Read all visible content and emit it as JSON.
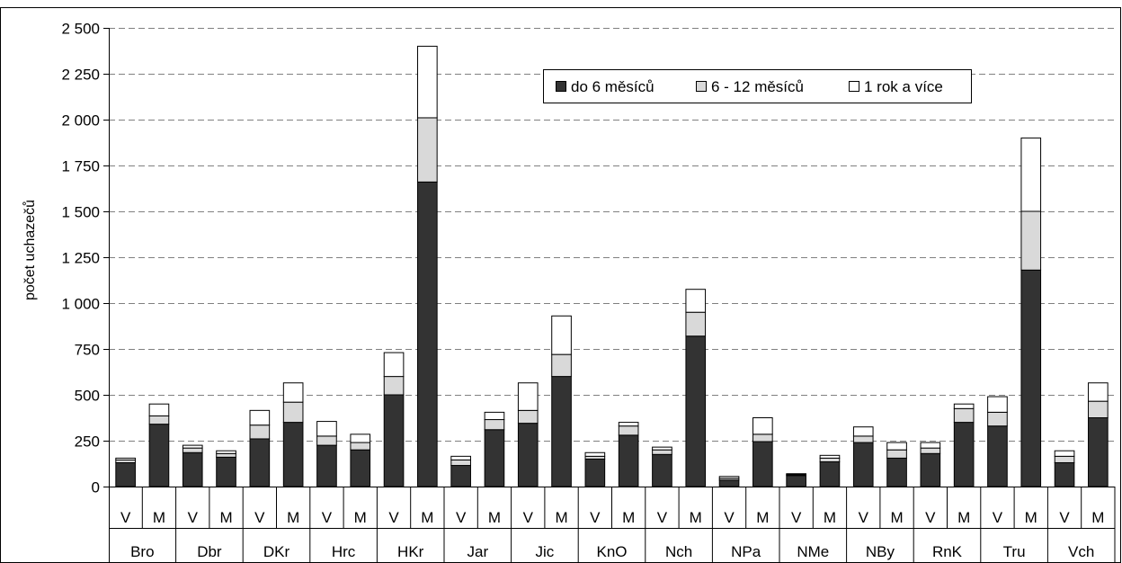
{
  "chart_data": {
    "type": "bar",
    "stacked": true,
    "ylabel": "počet uchazečů",
    "ylim": [
      0,
      2500
    ],
    "yticks": [
      0,
      250,
      500,
      750,
      1000,
      1250,
      1500,
      1750,
      2000,
      2250,
      2500
    ],
    "ytick_labels": [
      "0",
      "250",
      "500",
      "750",
      "1 000",
      "1 250",
      "1 500",
      "1 750",
      "2 000",
      "2 250",
      "2 500"
    ],
    "grid": "horizontal dashed",
    "legend_position": "top-right",
    "groups": [
      "Bro",
      "Dbr",
      "DKr",
      "Hrc",
      "HKr",
      "Jar",
      "Jic",
      "KnO",
      "Nch",
      "NPa",
      "NMe",
      "NBy",
      "RnK",
      "Tru",
      "Vch"
    ],
    "subcategories": [
      "V",
      "M"
    ],
    "series": [
      {
        "name": "do 6 měsíců",
        "color": "#333333",
        "values": [
          130,
          340,
          185,
          160,
          260,
          350,
          225,
          200,
          500,
          1660,
          115,
          310,
          345,
          600,
          150,
          280,
          175,
          820,
          35,
          245,
          60,
          135,
          240,
          155,
          180,
          350,
          330,
          1180,
          130,
          375
        ]
      },
      {
        "name": "6 - 12 měsíců",
        "color": "#d9d9d9",
        "values": [
          15,
          45,
          25,
          20,
          75,
          110,
          50,
          40,
          100,
          350,
          30,
          55,
          70,
          120,
          15,
          50,
          25,
          130,
          10,
          40,
          5,
          20,
          35,
          45,
          30,
          75,
          75,
          320,
          35,
          90
        ]
      },
      {
        "name": "1 rok a více",
        "color": "#ffffff",
        "values": [
          10,
          65,
          15,
          15,
          80,
          105,
          80,
          45,
          130,
          390,
          20,
          40,
          150,
          210,
          20,
          20,
          15,
          125,
          10,
          90,
          5,
          15,
          50,
          40,
          30,
          25,
          85,
          400,
          30,
          100
        ]
      }
    ]
  }
}
